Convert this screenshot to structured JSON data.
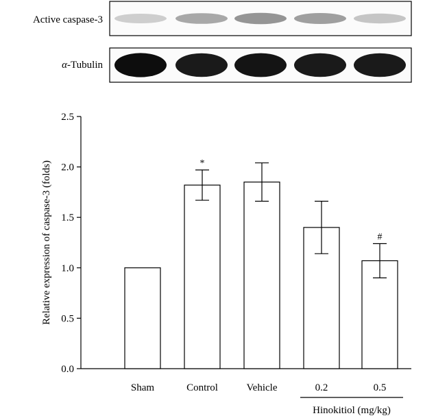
{
  "western_blot": {
    "rows": [
      {
        "label": "Active caspase-3",
        "band_intensity": [
          0.25,
          0.45,
          0.55,
          0.5,
          0.3
        ]
      },
      {
        "label_symbol": "α",
        "label_rest": "-Tubulin",
        "band_intensity": [
          0.95,
          0.9,
          0.92,
          0.9,
          0.9
        ]
      }
    ]
  },
  "chart_data": {
    "type": "bar",
    "categories": [
      "Sham",
      "Control",
      "Vehicle",
      "0.2",
      "0.5"
    ],
    "values": [
      1.0,
      1.82,
      1.85,
      1.4,
      1.07
    ],
    "errors": [
      0.0,
      0.15,
      0.19,
      0.26,
      0.17
    ],
    "significance": [
      "",
      "*",
      "",
      "",
      "#"
    ],
    "ylabel": "Relative expression of caspase-3 (folds)",
    "ylim": [
      0,
      2.5
    ],
    "yticks": [
      "0.0",
      "0.5",
      "1.0",
      "1.5",
      "2.0",
      "2.5"
    ],
    "group_label": "Hinokitiol (mg/kg)",
    "bar_fill": "#ffffff",
    "bar_stroke": "#000000",
    "grid": false,
    "legend": "none"
  }
}
